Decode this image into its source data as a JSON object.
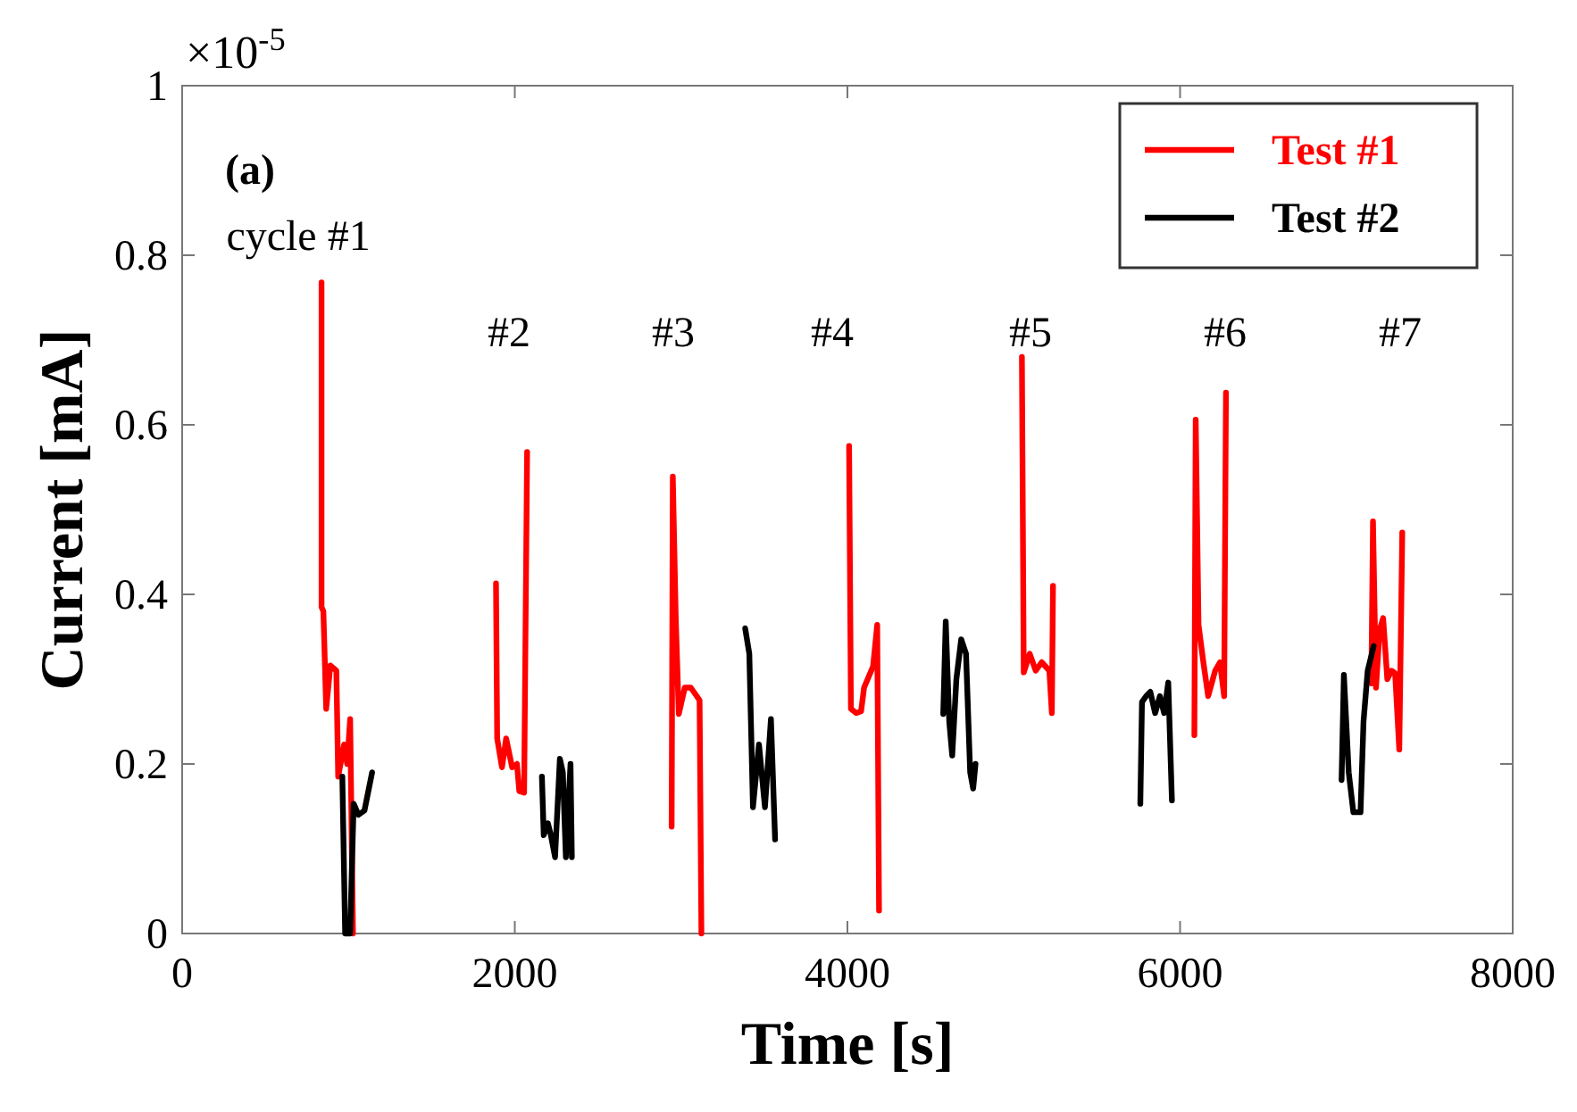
{
  "chart_data": {
    "type": "line",
    "xlabel": "Time [s]",
    "ylabel": "Current [mA]",
    "xlim": [
      0,
      8000
    ],
    "xticks": [
      0,
      2000,
      4000,
      6000,
      8000
    ],
    "ylim": [
      0,
      1
    ],
    "yticks": [
      0,
      0.2,
      0.4,
      0.6,
      0.8,
      1
    ],
    "grid": false,
    "legend": "top right",
    "marker": "none",
    "line_style": "solid",
    "series": [
      {
        "name": "Test #1",
        "color": "#ff0000",
        "x": [
          838,
          838,
          849,
          866,
          891,
          927,
          938,
          974,
          992,
          1010,
          1027,
          1450,
          1887,
          1894,
          1923,
          1948,
          1984,
          2013,
          2027,
          2056,
          2074,
          2500,
          2943,
          2950,
          2968,
          2986,
          3022,
          3058,
          3094,
          3111,
          3122,
          3550,
          4010,
          4021,
          4053,
          4082,
          4100,
          4154,
          4179,
          4190,
          4600,
          5049,
          5060,
          5096,
          5132,
          5168,
          5214,
          5229,
          5236,
          5650,
          6086,
          6094,
          6111,
          6140,
          6169,
          6211,
          6240,
          6265,
          6276,
          6700,
          7150,
          7160,
          7178,
          7200,
          7221,
          7246,
          7271,
          7293,
          7318,
          7336
        ],
        "values": [
          0.768,
          0.385,
          0.38,
          0.265,
          0.316,
          0.31,
          0.185,
          0.223,
          0.2,
          0.253,
          0,
          null,
          0.413,
          0.23,
          0.196,
          0.23,
          0.196,
          0.2,
          0.168,
          0.166,
          0.568,
          null,
          0.126,
          0.539,
          0.37,
          0.259,
          0.29,
          0.29,
          0.28,
          0.275,
          0,
          null,
          0.575,
          0.265,
          0.26,
          0.262,
          0.29,
          0.315,
          0.364,
          0.027,
          null,
          0.68,
          0.308,
          0.33,
          0.31,
          0.32,
          0.31,
          0.26,
          0.41,
          null,
          0.234,
          0.606,
          0.364,
          0.32,
          0.28,
          0.31,
          0.32,
          0.28,
          0.638,
          null,
          0.295,
          0.486,
          0.29,
          0.358,
          0.372,
          0.3,
          0.31,
          0.307,
          0.217,
          0.473
        ]
      },
      {
        "name": "Test #2",
        "color": "#000000",
        "x": [
          963,
          980,
          1010,
          1031,
          1060,
          1096,
          1142,
          1600,
          2163,
          2174,
          2199,
          2217,
          2242,
          2271,
          2289,
          2307,
          2335,
          2343,
          2800,
          3385,
          3410,
          3432,
          3468,
          3504,
          3540,
          3565,
          4100,
          4576,
          4591,
          4612,
          4630,
          4655,
          4684,
          4713,
          4738,
          4756,
          4770,
          5300,
          5761,
          5771,
          5796,
          5821,
          5850,
          5879,
          5904,
          5929,
          5951,
          6500,
          6971,
          6985,
          7014,
          7042,
          7085,
          7103,
          7128,
          7164
        ],
        "values": [
          0.185,
          0,
          0,
          0.153,
          0.14,
          0.145,
          0.19,
          null,
          0.185,
          0.116,
          0.13,
          0.116,
          0.09,
          0.206,
          0.19,
          0.09,
          0.2,
          0.09,
          null,
          0.36,
          0.33,
          0.149,
          0.223,
          0.149,
          0.253,
          0.111,
          null,
          0.259,
          0.368,
          0.25,
          0.21,
          0.3,
          0.347,
          0.33,
          0.19,
          0.171,
          0.2,
          null,
          0.153,
          0.273,
          0.28,
          0.285,
          0.26,
          0.28,
          0.26,
          0.296,
          0.157,
          null,
          0.181,
          0.305,
          0.19,
          0.143,
          0.143,
          0.25,
          0.31,
          0.339
        ]
      }
    ],
    "annotations": [
      "×10$^{-5}$",
      "(a)",
      "cycle #1",
      "#2",
      "#3",
      "#4",
      "#5",
      "#6",
      "#7"
    ]
  }
}
